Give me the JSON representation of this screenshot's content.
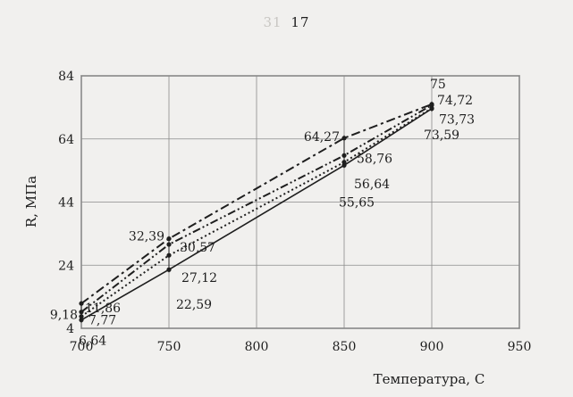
{
  "header": {
    "faded_text": "31",
    "page_number": "17"
  },
  "chart_data": {
    "type": "line",
    "title": "",
    "xlabel": "Температура, С",
    "ylabel": "R, МПа",
    "xlim": [
      700,
      950
    ],
    "ylim": [
      4,
      84
    ],
    "x_ticks": [
      "700",
      "750",
      "800",
      "850",
      "900",
      "950"
    ],
    "y_ticks": [
      "4",
      "24",
      "44",
      "64",
      "84"
    ],
    "grid": true,
    "legend": "none",
    "x": [
      700,
      750,
      850,
      900
    ],
    "series": [
      {
        "style": "solid",
        "color": "#1e1e1e",
        "values": [
          6.64,
          22.59,
          55.65,
          73.59
        ]
      },
      {
        "style": "dotted",
        "color": "#1e1e1e",
        "values": [
          7.77,
          27.12,
          56.64,
          73.73
        ]
      },
      {
        "style": "dash-dot-dot",
        "color": "#1e1e1e",
        "values": [
          9.18,
          30.57,
          58.76,
          74.72
        ]
      },
      {
        "style": "dash-dot",
        "color": "#1e1e1e",
        "values": [
          11.86,
          32.39,
          64.27,
          75
        ]
      }
    ],
    "data_labels": [
      {
        "text": "75",
        "x": 900,
        "y": 75
      },
      {
        "text": "74,72",
        "x": 900,
        "y": 74.72
      },
      {
        "text": "73,73",
        "x": 900,
        "y": 73.73
      },
      {
        "text": "73,59",
        "x": 900,
        "y": 73.59
      },
      {
        "text": "64,27",
        "x": 850,
        "y": 64.27
      },
      {
        "text": "58,76",
        "x": 850,
        "y": 58.76
      },
      {
        "text": "56,64",
        "x": 850,
        "y": 56.64
      },
      {
        "text": "55,65",
        "x": 850,
        "y": 55.65
      },
      {
        "text": "32,39",
        "x": 750,
        "y": 32.39
      },
      {
        "text": "30,57",
        "x": 750,
        "y": 30.57
      },
      {
        "text": "27,12",
        "x": 750,
        "y": 27.12
      },
      {
        "text": "22,59",
        "x": 750,
        "y": 22.59
      },
      {
        "text": "11,86",
        "x": 700,
        "y": 11.86
      },
      {
        "text": "9,18",
        "x": 700,
        "y": 9.18
      },
      {
        "text": "7,77",
        "x": 700,
        "y": 7.77
      },
      {
        "text": "6,64",
        "x": 700,
        "y": 6.64
      }
    ]
  }
}
